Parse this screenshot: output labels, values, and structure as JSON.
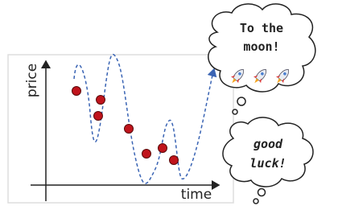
{
  "axes": {
    "y_label": "price",
    "x_label": "time"
  },
  "bubbles": [
    {
      "lines": [
        "To the",
        "moon!"
      ]
    },
    {
      "lines": [
        "good",
        "luck!"
      ]
    }
  ]
}
